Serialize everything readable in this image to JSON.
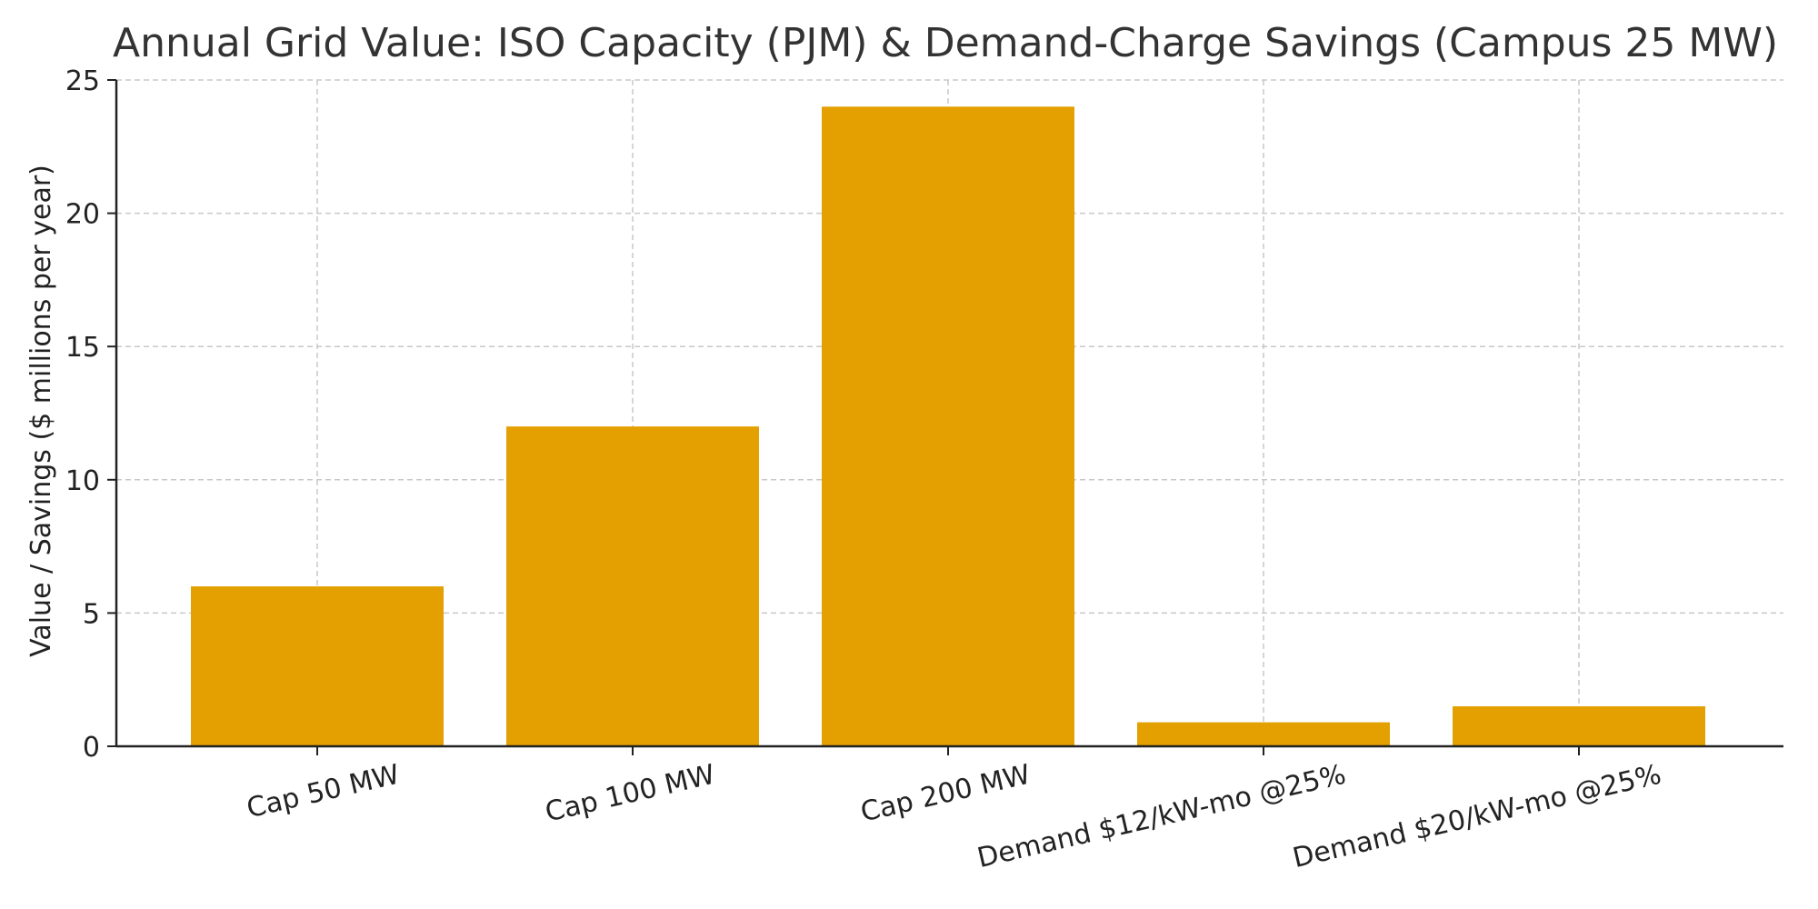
{
  "chart_data": {
    "type": "bar",
    "title": "Annual Grid Value: ISO Capacity (PJM) & Demand-Charge Savings (Campus 25 MW)",
    "xlabel": "",
    "ylabel": "Value / Savings ($ millions per year)",
    "categories": [
      "Cap 50 MW",
      "Cap 100 MW",
      "Cap 200 MW",
      "Demand $12/kW-mo @25%",
      "Demand $20/kW-mo @25%"
    ],
    "values": [
      6.0,
      12.0,
      24.0,
      0.9,
      1.5
    ],
    "ylim": [
      0,
      25
    ],
    "yticks": [
      0,
      5,
      10,
      15,
      20,
      25
    ],
    "grid": true,
    "bar_color": "#E3A000"
  }
}
